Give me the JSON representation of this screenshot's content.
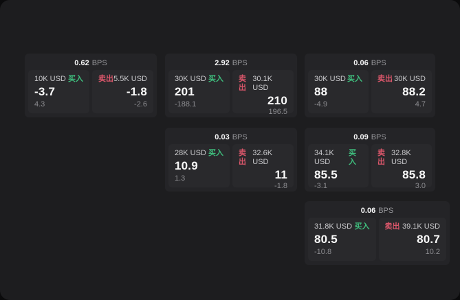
{
  "labels": {
    "buy": "买入",
    "sell": "卖出",
    "bps_unit": "BPS"
  },
  "colors": {
    "buy_green": "#3fbd7d",
    "sell_red": "#d9566a",
    "window_bg": "#1d1d1f",
    "card_bg": "#242427",
    "panel_bg": "#29292c"
  },
  "cards": [
    {
      "bps": "0.62",
      "buy": {
        "size": "10K USD",
        "price": "-3.7",
        "sub": "4.3"
      },
      "sell": {
        "size": "5.5K USD",
        "price": "-1.8",
        "sub": "-2.6"
      }
    },
    {
      "bps": "2.92",
      "buy": {
        "size": "30K USD",
        "price": "201",
        "sub": "-188.1"
      },
      "sell": {
        "size": "30.1K USD",
        "price": "210",
        "sub": "196.5"
      }
    },
    {
      "bps": "0.06",
      "buy": {
        "size": "30K USD",
        "price": "88",
        "sub": "-4.9"
      },
      "sell": {
        "size": "30K USD",
        "price": "88.2",
        "sub": "4.7"
      }
    },
    {
      "bps": "0.03",
      "buy": {
        "size": "28K USD",
        "price": "10.9",
        "sub": "1.3"
      },
      "sell": {
        "size": "32.6K USD",
        "price": "11",
        "sub": "-1.8"
      }
    },
    {
      "bps": "0.09",
      "buy": {
        "size": "34.1K USD",
        "price": "85.5",
        "sub": "-3.1"
      },
      "sell": {
        "size": "32.8K USD",
        "price": "85.8",
        "sub": "3.0"
      }
    },
    {
      "bps": "0.06",
      "buy": {
        "size": "31.8K USD",
        "price": "80.5",
        "sub": "-10.8"
      },
      "sell": {
        "size": "39.1K USD",
        "price": "80.7",
        "sub": "10.2"
      }
    }
  ]
}
